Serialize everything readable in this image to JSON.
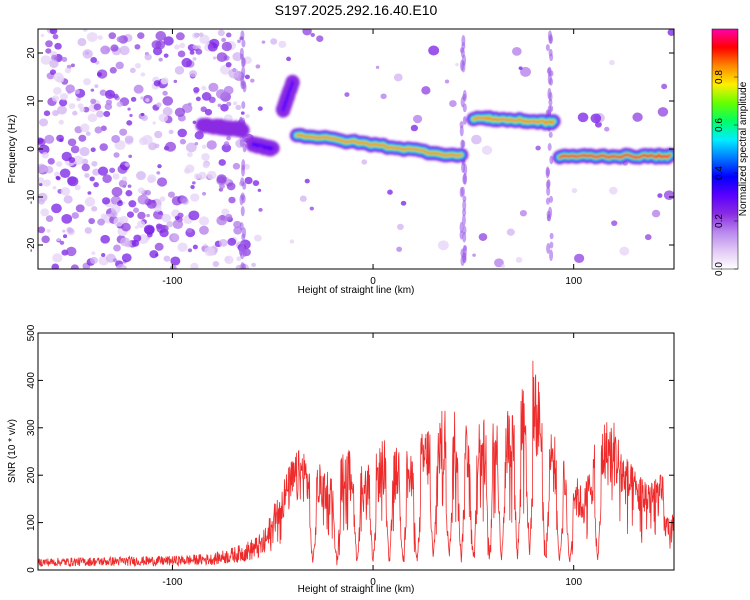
{
  "title": "S197.2025.292.16.40.E10",
  "chart_data": [
    {
      "type": "heatmap",
      "xlabel": "Height of straight line (km)",
      "ylabel": "Frequency (Hz)",
      "xlim": [
        -167,
        150
      ],
      "ylim": [
        -25,
        25
      ],
      "xticks": [
        -100,
        0,
        100
      ],
      "yticks": [
        -20,
        -10,
        0,
        10,
        20
      ],
      "colorbar": {
        "label": "Normalized spectral amplitude",
        "range": [
          0,
          1
        ],
        "ticks": [
          "0.0",
          "0.2",
          "0.4",
          "0.6",
          "0.8"
        ],
        "colors": [
          "#ffffff",
          "#e2c8f5",
          "#b888ee",
          "#8a2be2",
          "#5a00ff",
          "#0000ff",
          "#0077ff",
          "#00eeff",
          "#00ff66",
          "#66ff00",
          "#ffee00",
          "#ff8800",
          "#ff0000",
          "#ff00aa"
        ]
      },
      "ridges": [
        {
          "x_start": -85,
          "x_end": -65,
          "freq_start": 5,
          "freq_end": 4,
          "peak_amplitude": 0.25
        },
        {
          "x_start": -60,
          "x_end": -50,
          "freq_start": 1,
          "freq_end": 0,
          "peak_amplitude": 0.3
        },
        {
          "x_start": -45,
          "x_end": -40,
          "freq_start": 8,
          "freq_end": 14,
          "peak_amplitude": 0.3
        },
        {
          "x_start": -38,
          "x_end": 44,
          "freq_start": 3,
          "freq_end": -1.5,
          "peak_amplitude": 0.85
        },
        {
          "x_start": 50,
          "x_end": 90,
          "freq_start": 6.5,
          "freq_end": 5.5,
          "peak_amplitude": 0.85
        },
        {
          "x_start": 93,
          "x_end": 148,
          "freq_start": -1.5,
          "freq_end": -1.5,
          "peak_amplitude": 0.9
        }
      ]
    },
    {
      "type": "line",
      "xlabel": "Height of straight line (km)",
      "ylabel": "SNR (10 * v/v)",
      "xlim": [
        -167,
        150
      ],
      "ylim": [
        0,
        500
      ],
      "xticks": [
        -100,
        0,
        100
      ],
      "yticks": [
        0,
        100,
        200,
        300,
        400,
        500
      ],
      "color": "#ee2a2a",
      "envelope_x": [
        -167,
        -130,
        -100,
        -80,
        -65,
        -55,
        -50,
        -45,
        -40,
        -35,
        -30,
        -25,
        -20,
        -15,
        -10,
        -5,
        0,
        5,
        10,
        15,
        20,
        25,
        30,
        35,
        40,
        45,
        50,
        55,
        60,
        65,
        70,
        75,
        80,
        85,
        90,
        95,
        100,
        105,
        110,
        115,
        120,
        125,
        130,
        135,
        140,
        145,
        150
      ],
      "envelope_y": [
        25,
        28,
        30,
        35,
        55,
        80,
        130,
        190,
        240,
        265,
        210,
        230,
        200,
        250,
        260,
        220,
        230,
        280,
        250,
        280,
        230,
        300,
        320,
        340,
        345,
        330,
        330,
        320,
        350,
        345,
        360,
        420,
        450,
        360,
        290,
        250,
        210,
        170,
        260,
        320,
        320,
        250,
        215,
        200,
        205,
        200,
        195
      ],
      "dips": [
        -30,
        -18,
        -8,
        0,
        8,
        15,
        22,
        30,
        38,
        44,
        50,
        58,
        64,
        72,
        78,
        86,
        93,
        98,
        112
      ]
    }
  ]
}
